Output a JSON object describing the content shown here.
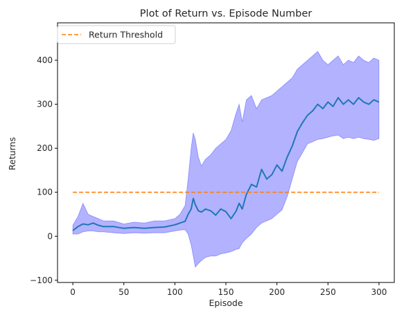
{
  "chart_data": {
    "type": "line",
    "title": "Plot of Return vs. Episode Number",
    "xlabel": "Episode",
    "ylabel": "Returns",
    "xlim": [
      -15,
      315
    ],
    "ylim": [
      -105,
      485
    ],
    "x_ticks": [
      0,
      50,
      100,
      150,
      200,
      250,
      300
    ],
    "y_ticks": [
      -100,
      0,
      100,
      200,
      300,
      400
    ],
    "grid": false,
    "legend_position": "top-left",
    "legend": [
      {
        "label": "Return Threshold",
        "style": "dashed",
        "color": "#ff7f0e"
      }
    ],
    "threshold": {
      "name": "Return Threshold",
      "value": 100,
      "x_start": 0,
      "x_end": 300,
      "color": "#ff7f0e"
    },
    "series": [
      {
        "role": "mean",
        "color": "#1f77b4",
        "band_color": "#0000ff",
        "x": [
          0,
          5,
          10,
          15,
          20,
          25,
          30,
          40,
          50,
          60,
          70,
          80,
          90,
          100,
          105,
          110,
          113,
          116,
          118,
          120,
          123,
          126,
          130,
          135,
          140,
          145,
          150,
          155,
          160,
          163,
          166,
          170,
          175,
          180,
          185,
          190,
          195,
          200,
          205,
          210,
          215,
          220,
          225,
          230,
          235,
          240,
          245,
          250,
          255,
          260,
          265,
          270,
          275,
          280,
          285,
          290,
          295,
          300
        ],
        "mean": [
          13,
          22,
          28,
          26,
          30,
          25,
          22,
          22,
          18,
          20,
          18,
          20,
          21,
          26,
          30,
          34,
          50,
          62,
          86,
          72,
          58,
          55,
          62,
          58,
          48,
          62,
          56,
          40,
          57,
          75,
          62,
          95,
          118,
          112,
          152,
          130,
          140,
          162,
          148,
          180,
          205,
          238,
          258,
          275,
          285,
          300,
          290,
          305,
          295,
          315,
          300,
          310,
          300,
          315,
          305,
          300,
          310,
          305
        ],
        "lower": [
          5,
          5,
          10,
          12,
          12,
          10,
          10,
          8,
          6,
          8,
          7,
          8,
          8,
          12,
          14,
          15,
          5,
          -20,
          -45,
          -70,
          -62,
          -55,
          -48,
          -45,
          -45,
          -40,
          -38,
          -35,
          -30,
          -28,
          -15,
          -5,
          5,
          20,
          30,
          35,
          40,
          50,
          60,
          90,
          130,
          170,
          190,
          210,
          215,
          220,
          222,
          225,
          228,
          230,
          222,
          225,
          222,
          225,
          222,
          220,
          218,
          222
        ],
        "upper": [
          25,
          45,
          75,
          50,
          45,
          40,
          35,
          35,
          28,
          32,
          30,
          35,
          35,
          40,
          50,
          70,
          130,
          200,
          235,
          220,
          180,
          160,
          175,
          185,
          200,
          210,
          220,
          240,
          280,
          300,
          260,
          310,
          320,
          290,
          310,
          315,
          320,
          330,
          340,
          350,
          360,
          380,
          390,
          400,
          410,
          420,
          400,
          390,
          400,
          410,
          390,
          400,
          395,
          410,
          400,
          395,
          405,
          400
        ]
      }
    ]
  }
}
